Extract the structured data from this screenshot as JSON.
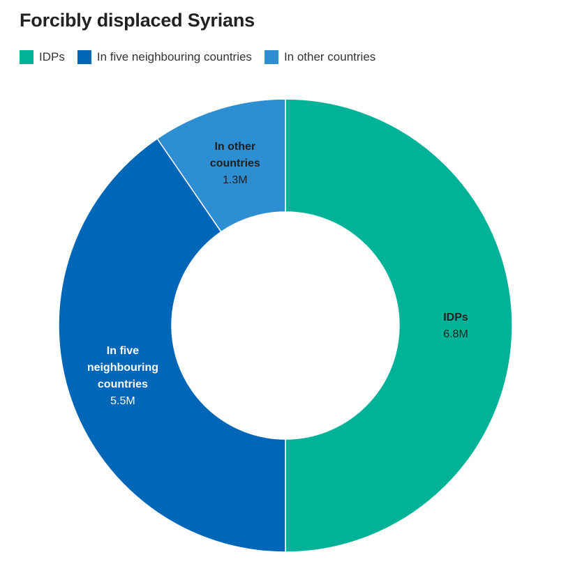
{
  "chart_data": {
    "type": "pie",
    "variant": "donut",
    "title": "Forcibly displaced Syrians",
    "legend_position": "top-left",
    "slices": [
      {
        "label": "IDPs",
        "value": 6.8,
        "value_label": "6.8M",
        "color": "#00b398",
        "label_lines": [
          "IDPs"
        ],
        "text_color": "#1f1f1f"
      },
      {
        "label": "In five neighbouring countries",
        "value": 5.5,
        "value_label": "5.5M",
        "color": "#0067b8",
        "label_lines": [
          "In five",
          "neighbouring",
          "countries"
        ],
        "text_color": "#ffffff"
      },
      {
        "label": "In other countries",
        "value": 1.3,
        "value_label": "1.3M",
        "color": "#2d8ed1",
        "label_lines": [
          "In other",
          "countries"
        ],
        "text_color": "#1f1f1f"
      }
    ]
  }
}
